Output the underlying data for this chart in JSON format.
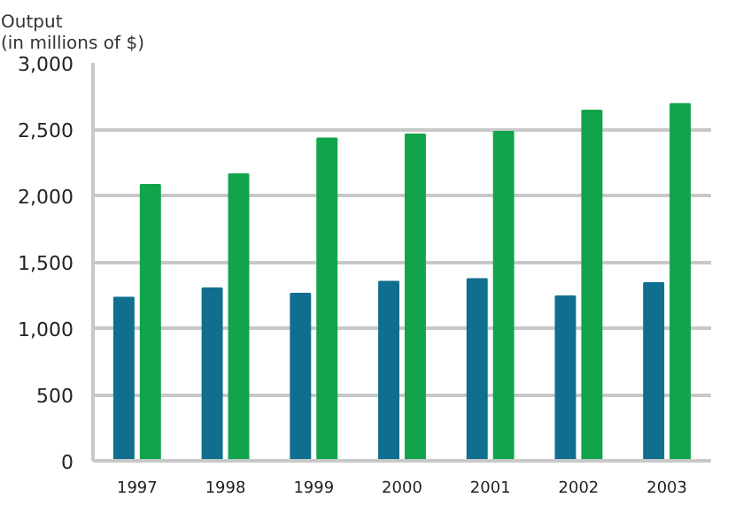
{
  "chart_data": {
    "type": "bar",
    "ylabel": "Output\n(in millions of $)",
    "categories": [
      "1997",
      "1998",
      "1999",
      "2000",
      "2001",
      "2002",
      "2003"
    ],
    "series": [
      {
        "color": "#106f8f",
        "values": [
          1230,
          1300,
          1260,
          1350,
          1370,
          1240,
          1340
        ]
      },
      {
        "color": "#11a44a",
        "values": [
          2080,
          2160,
          2430,
          2460,
          2480,
          2640,
          2690
        ]
      }
    ],
    "ylim": [
      0,
      3000
    ],
    "yticks": [
      {
        "value": 0,
        "label": "0"
      },
      {
        "value": 500,
        "label": "500"
      },
      {
        "value": 1000,
        "label": "1,000"
      },
      {
        "value": 1500,
        "label": "1,500"
      },
      {
        "value": 2000,
        "label": "2,000"
      },
      {
        "value": 2500,
        "label": "2,500"
      },
      {
        "value": 3000,
        "label": "3,000"
      }
    ],
    "grid": "y"
  }
}
